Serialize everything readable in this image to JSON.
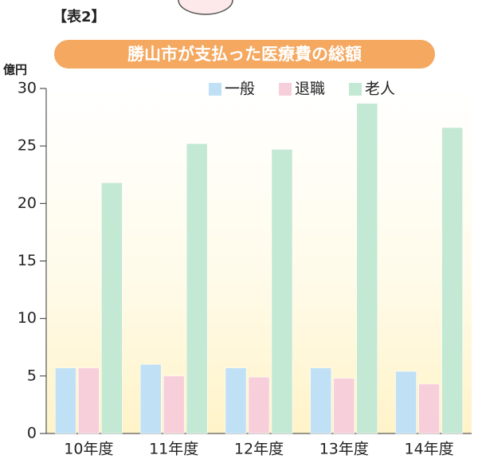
{
  "chart_data": {
    "type": "bar",
    "figure_label": "【表2】",
    "title": "勝山市が支払った医療費の総額",
    "y_label": "億円",
    "categories": [
      "10年度",
      "11年度",
      "12年度",
      "13年度",
      "14年度"
    ],
    "series": [
      {
        "name": "一般",
        "color": "#bfe0f5",
        "values": [
          5.7,
          6.0,
          5.7,
          5.7,
          5.4
        ]
      },
      {
        "name": "退職",
        "color": "#f6cfdb",
        "values": [
          5.7,
          5.0,
          4.9,
          4.8,
          4.3
        ]
      },
      {
        "name": "老人",
        "color": "#c3e8d3",
        "values": [
          21.8,
          25.2,
          24.7,
          28.7,
          26.6
        ]
      }
    ],
    "ylim": [
      0,
      30
    ],
    "yticks": [
      0,
      5,
      10,
      15,
      20,
      25,
      30
    ],
    "legend": "top-right"
  }
}
